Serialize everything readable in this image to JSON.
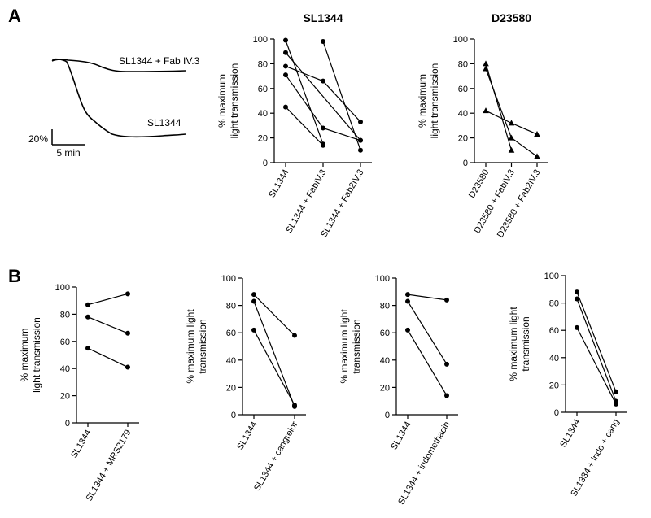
{
  "panel_labels": {
    "a": "A",
    "b": "B"
  },
  "trace": {
    "label_top": "SL1344 + Fab IV.3",
    "label_bottom": "SL1344",
    "scale_y": "20%",
    "scale_x": "5 min"
  },
  "chart_data": [
    {
      "type": "line",
      "panel": "A",
      "title": "SL1344",
      "ylabel_lines": [
        "% maximum",
        "light transmission"
      ],
      "xlabel": "",
      "categories": [
        "SL1344",
        "SL1344 + FabIV.3",
        "SL1344 + Fab2IV.3"
      ],
      "ylim": [
        0,
        100
      ],
      "yticks": [
        0,
        20,
        40,
        60,
        80,
        100
      ],
      "marker": "circle",
      "series": [
        {
          "name": "1",
          "values": [
            99,
            15,
            null
          ]
        },
        {
          "name": "2",
          "values": [
            89,
            null,
            18
          ]
        },
        {
          "name": "3",
          "values": [
            78,
            66,
            33
          ]
        },
        {
          "name": "4",
          "values": [
            71,
            28,
            18
          ]
        },
        {
          "name": "5",
          "values": [
            45,
            14,
            null
          ]
        },
        {
          "name": "6",
          "values": [
            null,
            98,
            10
          ]
        }
      ]
    },
    {
      "type": "line",
      "panel": "A",
      "title": "D23580",
      "ylabel_lines": [
        "% maximum",
        "light transmission"
      ],
      "xlabel": "",
      "categories": [
        "D23580",
        "D23580 + FabIV.3",
        "D23580 + Fab2IV.3"
      ],
      "ylim": [
        0,
        100
      ],
      "yticks": [
        0,
        20,
        40,
        60,
        80,
        100
      ],
      "marker": "triangle",
      "series": [
        {
          "name": "1",
          "values": [
            80,
            10,
            null
          ]
        },
        {
          "name": "2",
          "values": [
            76,
            20,
            5
          ]
        },
        {
          "name": "3",
          "values": [
            42,
            32,
            23
          ]
        }
      ]
    },
    {
      "type": "line",
      "panel": "B",
      "title": "",
      "ylabel_lines": [
        "% maximum",
        "light transmission"
      ],
      "xlabel": "",
      "categories": [
        "SL1344",
        "SL1344 + MRS2179"
      ],
      "ylim": [
        0,
        100
      ],
      "yticks": [
        0,
        20,
        40,
        60,
        80,
        100
      ],
      "marker": "circle",
      "series": [
        {
          "name": "1",
          "values": [
            87,
            95
          ]
        },
        {
          "name": "2",
          "values": [
            78,
            66
          ]
        },
        {
          "name": "3",
          "values": [
            55,
            41
          ]
        }
      ]
    },
    {
      "type": "line",
      "panel": "B",
      "title": "",
      "ylabel_lines": [
        "% maximum light",
        "transmission"
      ],
      "xlabel": "",
      "categories": [
        "SL1344",
        "SL1344 + cangrelor"
      ],
      "ylim": [
        0,
        100
      ],
      "yticks": [
        0,
        20,
        40,
        60,
        80,
        100
      ],
      "marker": "circle",
      "series": [
        {
          "name": "1",
          "values": [
            88,
            58
          ]
        },
        {
          "name": "2",
          "values": [
            83,
            6
          ]
        },
        {
          "name": "3",
          "values": [
            62,
            7
          ]
        }
      ]
    },
    {
      "type": "line",
      "panel": "B",
      "title": "",
      "ylabel_lines": [
        "% maximum light",
        "transmission"
      ],
      "xlabel": "",
      "categories": [
        "SL1344",
        "SL1344 + indomethacin"
      ],
      "ylim": [
        0,
        100
      ],
      "yticks": [
        0,
        20,
        40,
        60,
        80,
        100
      ],
      "marker": "circle",
      "series": [
        {
          "name": "1",
          "values": [
            88,
            84
          ]
        },
        {
          "name": "2",
          "values": [
            83,
            37
          ]
        },
        {
          "name": "3",
          "values": [
            62,
            14
          ]
        }
      ]
    },
    {
      "type": "line",
      "panel": "B",
      "title": "",
      "ylabel_lines": [
        "% maximum light",
        "transmission"
      ],
      "xlabel": "",
      "categories": [
        "SL1344",
        "SL1334 + indo + cang"
      ],
      "ylim": [
        0,
        100
      ],
      "yticks": [
        0,
        20,
        40,
        60,
        80,
        100
      ],
      "marker": "circle",
      "series": [
        {
          "name": "1",
          "values": [
            88,
            15
          ]
        },
        {
          "name": "2",
          "values": [
            83,
            8
          ]
        },
        {
          "name": "3",
          "values": [
            62,
            6
          ]
        }
      ]
    }
  ]
}
